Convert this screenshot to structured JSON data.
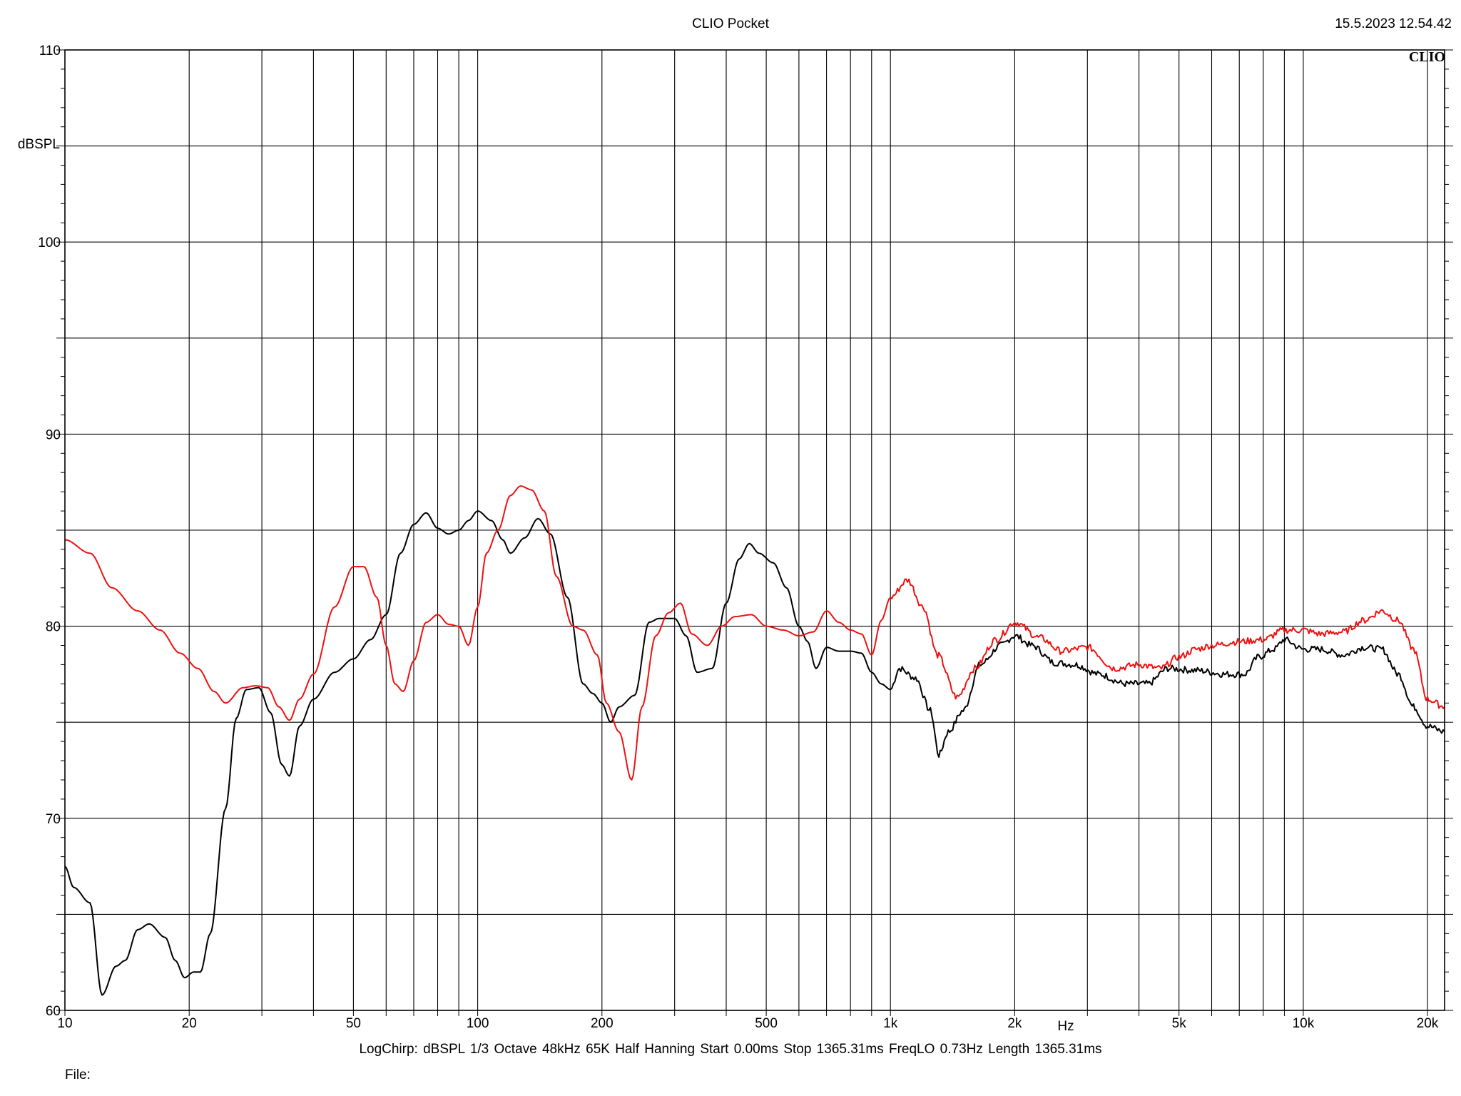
{
  "header": {
    "title": "CLIO Pocket",
    "timestamp": "15.5.2023 12.54.42",
    "logo": "CLIO"
  },
  "footer": {
    "params": "LogChirp:  dBSPL   1/3 Octave   48kHz   65K   Half Hanning   Start 0.00ms    Stop 1365.31ms    FreqLO 0.73Hz    Length 1365.31ms",
    "file_label": "File:"
  },
  "chart_data": {
    "type": "line",
    "title": "CLIO Pocket",
    "xlabel": "Hz",
    "ylabel": "dBSPL",
    "x_scale": "log",
    "xlim": [
      10,
      22000
    ],
    "ylim": [
      60,
      110
    ],
    "grid": true,
    "x_ticks": [
      {
        "v": 10,
        "label": "10"
      },
      {
        "v": 20,
        "label": "20"
      },
      {
        "v": 50,
        "label": "50"
      },
      {
        "v": 100,
        "label": "100"
      },
      {
        "v": 200,
        "label": "200"
      },
      {
        "v": 500,
        "label": "500"
      },
      {
        "v": 1000,
        "label": "1k"
      },
      {
        "v": 2000,
        "label": "2k"
      },
      {
        "v": 5000,
        "label": "5k"
      },
      {
        "v": 10000,
        "label": "10k"
      },
      {
        "v": 20000,
        "label": "20k"
      }
    ],
    "y_ticks": [
      60,
      70,
      80,
      90,
      100,
      110
    ],
    "series": [
      {
        "color": "#000000",
        "points": [
          [
            10,
            67.5
          ],
          [
            10.5,
            66.4
          ],
          [
            11.5,
            65.6
          ],
          [
            12.3,
            60.8
          ],
          [
            13.3,
            62.3
          ],
          [
            14,
            62.6
          ],
          [
            15,
            64.2
          ],
          [
            16,
            64.5
          ],
          [
            17.5,
            63.8
          ],
          [
            18.5,
            62.6
          ],
          [
            19.5,
            61.7
          ],
          [
            20.5,
            62.0
          ],
          [
            21.3,
            62.0
          ],
          [
            22.5,
            64.0
          ],
          [
            24.5,
            70.5
          ],
          [
            26,
            75.2
          ],
          [
            27.5,
            76.7
          ],
          [
            29.5,
            76.8
          ],
          [
            31.5,
            75.5
          ],
          [
            33.5,
            72.8
          ],
          [
            35,
            72.2
          ],
          [
            37,
            74.8
          ],
          [
            40,
            76.2
          ],
          [
            45,
            77.6
          ],
          [
            50,
            78.3
          ],
          [
            55,
            79.3
          ],
          [
            60,
            80.6
          ],
          [
            65,
            83.8
          ],
          [
            70,
            85.3
          ],
          [
            75,
            85.9
          ],
          [
            80,
            85.1
          ],
          [
            85,
            84.8
          ],
          [
            90,
            85.0
          ],
          [
            95,
            85.5
          ],
          [
            100,
            86.0
          ],
          [
            108,
            85.5
          ],
          [
            115,
            84.5
          ],
          [
            120,
            83.8
          ],
          [
            130,
            84.6
          ],
          [
            140,
            85.6
          ],
          [
            150,
            84.8
          ],
          [
            165,
            81.5
          ],
          [
            180,
            77.0
          ],
          [
            190,
            76.5
          ],
          [
            200,
            76.0
          ],
          [
            210,
            75.0
          ],
          [
            220,
            75.8
          ],
          [
            240,
            76.4
          ],
          [
            260,
            80.2
          ],
          [
            275,
            80.4
          ],
          [
            300,
            80.4
          ],
          [
            320,
            79.5
          ],
          [
            340,
            77.6
          ],
          [
            370,
            77.8
          ],
          [
            400,
            81.2
          ],
          [
            430,
            83.5
          ],
          [
            455,
            84.3
          ],
          [
            480,
            83.8
          ],
          [
            520,
            83.3
          ],
          [
            560,
            82.0
          ],
          [
            600,
            80.0
          ],
          [
            630,
            79.2
          ],
          [
            660,
            77.8
          ],
          [
            700,
            78.9
          ],
          [
            750,
            78.7
          ],
          [
            800,
            78.7
          ],
          [
            850,
            78.6
          ],
          [
            900,
            77.6
          ],
          [
            950,
            77.0
          ],
          [
            1000,
            76.7
          ],
          [
            1050,
            77.8
          ],
          [
            1150,
            77.3
          ],
          [
            1250,
            75.6
          ],
          [
            1310,
            73.3
          ],
          [
            1380,
            74.5
          ],
          [
            1500,
            75.6
          ],
          [
            1650,
            78.0
          ],
          [
            1850,
            79.0
          ],
          [
            2000,
            79.5
          ],
          [
            2200,
            79.0
          ],
          [
            2500,
            78.1
          ],
          [
            2800,
            78.0
          ],
          [
            3200,
            77.5
          ],
          [
            3700,
            77.0
          ],
          [
            4200,
            77.0
          ],
          [
            4700,
            77.8
          ],
          [
            5500,
            77.7
          ],
          [
            6500,
            77.5
          ],
          [
            7200,
            77.5
          ],
          [
            7800,
            78.4
          ],
          [
            8500,
            78.8
          ],
          [
            9000,
            79.3
          ],
          [
            10000,
            78.8
          ],
          [
            11000,
            78.8
          ],
          [
            12500,
            78.5
          ],
          [
            14000,
            78.9
          ],
          [
            15500,
            78.8
          ],
          [
            17000,
            77.5
          ],
          [
            18500,
            75.8
          ],
          [
            20000,
            74.8
          ],
          [
            22000,
            74.5
          ]
        ]
      },
      {
        "color": "#ee1111",
        "points": [
          [
            10,
            84.5
          ],
          [
            11.5,
            83.8
          ],
          [
            13,
            82.0
          ],
          [
            15,
            80.8
          ],
          [
            17,
            79.8
          ],
          [
            19,
            78.6
          ],
          [
            21,
            77.8
          ],
          [
            23,
            76.6
          ],
          [
            24.5,
            76.0
          ],
          [
            27,
            76.8
          ],
          [
            29,
            76.9
          ],
          [
            31,
            76.8
          ],
          [
            33,
            75.8
          ],
          [
            35,
            75.1
          ],
          [
            37,
            76.2
          ],
          [
            40,
            77.5
          ],
          [
            45,
            81.0
          ],
          [
            50,
            83.1
          ],
          [
            53,
            83.1
          ],
          [
            57,
            81.5
          ],
          [
            60,
            79.0
          ],
          [
            63,
            77.0
          ],
          [
            66,
            76.6
          ],
          [
            70,
            78.2
          ],
          [
            75,
            80.2
          ],
          [
            80,
            80.6
          ],
          [
            85,
            80.1
          ],
          [
            90,
            80.0
          ],
          [
            95,
            79.0
          ],
          [
            100,
            81.0
          ],
          [
            105,
            83.8
          ],
          [
            112,
            85.0
          ],
          [
            120,
            86.8
          ],
          [
            127,
            87.3
          ],
          [
            135,
            87.1
          ],
          [
            145,
            86.0
          ],
          [
            155,
            82.6
          ],
          [
            170,
            80.0
          ],
          [
            180,
            79.8
          ],
          [
            195,
            78.5
          ],
          [
            205,
            76.0
          ],
          [
            220,
            74.5
          ],
          [
            236,
            72.0
          ],
          [
            250,
            75.8
          ],
          [
            270,
            79.5
          ],
          [
            290,
            80.7
          ],
          [
            310,
            81.2
          ],
          [
            330,
            79.6
          ],
          [
            360,
            79.0
          ],
          [
            390,
            80.0
          ],
          [
            420,
            80.5
          ],
          [
            460,
            80.6
          ],
          [
            500,
            80.0
          ],
          [
            550,
            79.8
          ],
          [
            600,
            79.5
          ],
          [
            650,
            79.7
          ],
          [
            700,
            80.8
          ],
          [
            750,
            80.2
          ],
          [
            800,
            79.8
          ],
          [
            850,
            79.6
          ],
          [
            900,
            78.5
          ],
          [
            950,
            80.3
          ],
          [
            1000,
            81.5
          ],
          [
            1100,
            82.4
          ],
          [
            1200,
            81.0
          ],
          [
            1300,
            78.5
          ],
          [
            1450,
            76.3
          ],
          [
            1600,
            77.8
          ],
          [
            1800,
            79.3
          ],
          [
            2000,
            80.2
          ],
          [
            2300,
            79.4
          ],
          [
            2600,
            78.7
          ],
          [
            3000,
            78.9
          ],
          [
            3500,
            77.8
          ],
          [
            4000,
            78.0
          ],
          [
            4500,
            77.8
          ],
          [
            5000,
            78.4
          ],
          [
            5500,
            78.8
          ],
          [
            6000,
            79.0
          ],
          [
            7000,
            79.2
          ],
          [
            8000,
            79.3
          ],
          [
            9000,
            79.8
          ],
          [
            10000,
            79.8
          ],
          [
            11000,
            79.6
          ],
          [
            12500,
            79.7
          ],
          [
            14000,
            80.3
          ],
          [
            15500,
            80.8
          ],
          [
            17000,
            80.3
          ],
          [
            18500,
            78.8
          ],
          [
            20000,
            76.2
          ],
          [
            22000,
            75.8
          ]
        ]
      }
    ]
  }
}
